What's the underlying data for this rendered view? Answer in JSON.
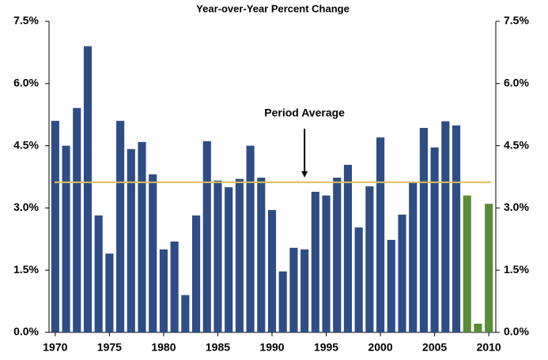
{
  "chart_data": {
    "type": "bar",
    "title": "Year-over-Year Percent Change",
    "categories": [
      "1970",
      null,
      null,
      null,
      null,
      "1975",
      null,
      null,
      null,
      null,
      "1980",
      null,
      null,
      null,
      null,
      "1985",
      null,
      null,
      null,
      null,
      "1990",
      null,
      null,
      null,
      null,
      "1995",
      null,
      null,
      null,
      null,
      "2000",
      null,
      null,
      null,
      null,
      "2005",
      null,
      null,
      null,
      null,
      "2010"
    ],
    "values": [
      5.1,
      4.5,
      5.41,
      6.9,
      2.82,
      1.9,
      5.1,
      4.42,
      4.59,
      3.81,
      2.0,
      2.19,
      0.9,
      2.82,
      4.61,
      3.66,
      3.5,
      3.7,
      4.5,
      3.73,
      2.95,
      1.47,
      2.04,
      2.0,
      3.39,
      3.3,
      3.73,
      4.04,
      2.53,
      3.52,
      4.7,
      2.23,
      2.84,
      3.62,
      4.93,
      4.46,
      5.09,
      4.99,
      3.3,
      0.21,
      3.1
    ],
    "colors": [
      "#2e4d86",
      "#2e4d86",
      "#2e4d86",
      "#2e4d86",
      "#2e4d86",
      "#2e4d86",
      "#2e4d86",
      "#2e4d86",
      "#2e4d86",
      "#2e4d86",
      "#2e4d86",
      "#2e4d86",
      "#2e4d86",
      "#2e4d86",
      "#2e4d86",
      "#2e4d86",
      "#2e4d86",
      "#2e4d86",
      "#2e4d86",
      "#2e4d86",
      "#2e4d86",
      "#2e4d86",
      "#2e4d86",
      "#2e4d86",
      "#2e4d86",
      "#2e4d86",
      "#2e4d86",
      "#2e4d86",
      "#2e4d86",
      "#2e4d86",
      "#2e4d86",
      "#2e4d86",
      "#2e4d86",
      "#2e4d86",
      "#2e4d86",
      "#2e4d86",
      "#2e4d86",
      "#2e4d86",
      "#5a8c38",
      "#5a8c38",
      "#5a8c38"
    ],
    "average": 3.62,
    "average_color": "#d9bf5a",
    "annotation": "Period Average",
    "annotation_index": 23,
    "ylim": [
      0,
      7.5
    ],
    "yticks": [
      {
        "value": 0,
        "label": "0.0%"
      },
      {
        "value": 1.5,
        "label": "1.5%"
      },
      {
        "value": 3,
        "label": "3.0%"
      },
      {
        "value": 4.5,
        "label": "4.5%"
      },
      {
        "value": 6,
        "label": "6.0%"
      },
      {
        "value": 7.5,
        "label": "7.5%"
      }
    ],
    "y2lim": [
      0,
      7.5
    ],
    "y2ticks": [
      {
        "value": 0,
        "label": "0.0%"
      },
      {
        "value": 1.5,
        "label": "1.5%"
      },
      {
        "value": 3,
        "label": "3.0%"
      },
      {
        "value": 4.5,
        "label": "4.5%"
      },
      {
        "value": 6,
        "label": "6.0%"
      },
      {
        "value": 7.5,
        "label": "7.5%"
      }
    ]
  }
}
